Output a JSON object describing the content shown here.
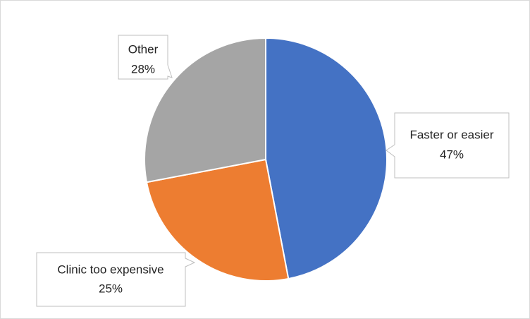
{
  "chart_data": {
    "type": "pie",
    "categories": [
      "Faster or easier",
      "Clinic too expensive",
      "Other"
    ],
    "values": [
      47,
      25,
      28
    ],
    "value_labels": [
      "47%",
      "25%",
      "28%"
    ],
    "colors": [
      "#4472c4",
      "#ed7d31",
      "#a5a5a5"
    ]
  }
}
